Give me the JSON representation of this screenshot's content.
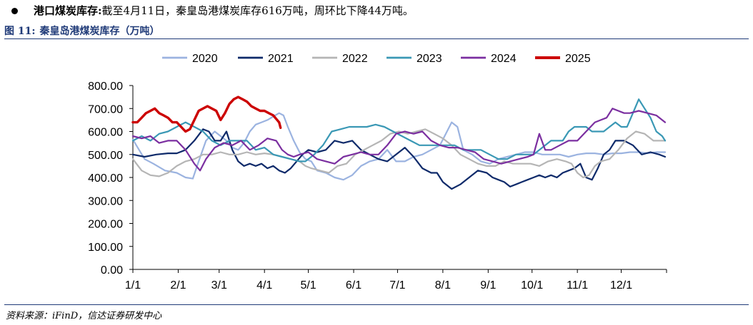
{
  "header": {
    "bullet_head": "港口煤炭库存:",
    "bullet_text": "截至4月11日，秦皇岛港煤炭库存616万吨，周环比下降44万吨。"
  },
  "figure": {
    "number": "图 11:",
    "title": "秦皇岛港煤炭库存（万吨）",
    "source": "资料来源：iFinD，信达证券研发中心"
  },
  "chart_data": {
    "type": "line",
    "title": "秦皇岛港煤炭库存（万吨）",
    "xlabel": "",
    "ylabel": "",
    "ylim": [
      0,
      800
    ],
    "yticks": [
      "800.00",
      "700.00",
      "600.00",
      "500.00",
      "400.00",
      "300.00",
      "200.00",
      "100.00",
      "0.00"
    ],
    "ytick_values": [
      800,
      700,
      600,
      500,
      400,
      300,
      200,
      100,
      0
    ],
    "xticks": [
      "1/1",
      "2/1",
      "3/1",
      "4/1",
      "5/1",
      "6/1",
      "7/1",
      "8/1",
      "9/1",
      "10/1",
      "11/1",
      "12/1"
    ],
    "xtick_days": [
      0,
      31,
      59,
      90,
      120,
      151,
      181,
      212,
      243,
      273,
      304,
      334
    ],
    "x_unit": "day of year",
    "legend_position": "top",
    "series": [
      {
        "name": "2020",
        "color": "#9bb3e0",
        "width": 2.2,
        "x": [
          0,
          8,
          14,
          22,
          30,
          36,
          41,
          45,
          50,
          56,
          60,
          64,
          68,
          72,
          76,
          80,
          84,
          88,
          92,
          96,
          100,
          103,
          106,
          110,
          114,
          118,
          122,
          126,
          132,
          138,
          144,
          150,
          156,
          162,
          168,
          174,
          180,
          186,
          192,
          198,
          204,
          210,
          214,
          218,
          222,
          226,
          232,
          238,
          244,
          250,
          256,
          262,
          268,
          274,
          280,
          286,
          292,
          298,
          304,
          310,
          316,
          322,
          328,
          334,
          340,
          346,
          352,
          358,
          364
        ],
        "y": [
          565,
          480,
          460,
          430,
          420,
          400,
          395,
          470,
          560,
          600,
          580,
          560,
          530,
          520,
          550,
          600,
          630,
          640,
          650,
          665,
          680,
          670,
          620,
          560,
          510,
          480,
          470,
          430,
          420,
          400,
          390,
          410,
          450,
          470,
          480,
          520,
          470,
          470,
          490,
          500,
          520,
          540,
          590,
          640,
          620,
          520,
          500,
          470,
          460,
          480,
          490,
          500,
          510,
          510,
          500,
          500,
          500,
          490,
          500,
          505,
          505,
          500,
          505,
          505,
          510,
          510,
          505,
          510,
          510
        ]
      },
      {
        "name": "2021",
        "color": "#0e2a6a",
        "width": 2.2,
        "x": [
          0,
          8,
          16,
          24,
          30,
          36,
          42,
          48,
          52,
          56,
          60,
          64,
          68,
          72,
          76,
          80,
          84,
          88,
          92,
          96,
          100,
          104,
          108,
          112,
          116,
          120,
          126,
          132,
          138,
          144,
          150,
          156,
          162,
          168,
          174,
          180,
          186,
          192,
          198,
          204,
          208,
          212,
          218,
          224,
          230,
          236,
          242,
          246,
          250,
          254,
          258,
          262,
          266,
          270,
          274,
          278,
          282,
          286,
          290,
          294,
          298,
          302,
          306,
          310,
          314,
          318,
          322,
          326,
          330,
          336,
          342,
          348,
          354,
          360,
          364
        ],
        "y": [
          500,
          490,
          500,
          505,
          505,
          520,
          560,
          610,
          600,
          560,
          560,
          600,
          520,
          470,
          450,
          460,
          450,
          460,
          440,
          450,
          430,
          420,
          440,
          470,
          500,
          520,
          510,
          520,
          560,
          550,
          560,
          520,
          500,
          480,
          470,
          500,
          530,
          490,
          440,
          420,
          420,
          380,
          350,
          370,
          400,
          430,
          420,
          400,
          390,
          380,
          360,
          370,
          380,
          390,
          400,
          410,
          400,
          410,
          400,
          420,
          430,
          440,
          460,
          400,
          390,
          440,
          500,
          520,
          560,
          560,
          540,
          500,
          510,
          500,
          490
        ]
      },
      {
        "name": "2022",
        "color": "#b5b5b5",
        "width": 2.2,
        "x": [
          0,
          6,
          12,
          18,
          24,
          30,
          36,
          42,
          48,
          54,
          60,
          66,
          72,
          78,
          84,
          90,
          96,
          102,
          108,
          114,
          118,
          122,
          128,
          134,
          140,
          146,
          152,
          158,
          164,
          170,
          176,
          182,
          188,
          194,
          200,
          206,
          212,
          218,
          224,
          230,
          236,
          242,
          248,
          254,
          260,
          266,
          272,
          278,
          284,
          290,
          296,
          300,
          304,
          308,
          312,
          316,
          320,
          326,
          332,
          338,
          344,
          350,
          356,
          364
        ],
        "y": [
          480,
          430,
          410,
          405,
          420,
          450,
          470,
          480,
          500,
          500,
          510,
          500,
          500,
          510,
          500,
          505,
          500,
          490,
          480,
          470,
          450,
          440,
          430,
          420,
          450,
          460,
          500,
          520,
          540,
          560,
          590,
          600,
          590,
          600,
          610,
          590,
          570,
          540,
          500,
          480,
          460,
          450,
          450,
          470,
          460,
          460,
          460,
          450,
          470,
          480,
          470,
          460,
          420,
          400,
          410,
          450,
          470,
          480,
          520,
          570,
          600,
          590,
          560,
          560
        ]
      },
      {
        "name": "2023",
        "color": "#3a98b5",
        "width": 2.2,
        "x": [
          0,
          6,
          12,
          18,
          24,
          30,
          36,
          42,
          48,
          54,
          60,
          66,
          72,
          78,
          84,
          90,
          96,
          102,
          108,
          114,
          118,
          124,
          130,
          136,
          142,
          148,
          154,
          160,
          166,
          172,
          178,
          184,
          190,
          196,
          202,
          208,
          214,
          220,
          226,
          232,
          238,
          244,
          250,
          256,
          262,
          268,
          274,
          280,
          286,
          290,
          294,
          298,
          302,
          306,
          310,
          314,
          318,
          322,
          326,
          330,
          334,
          338,
          342,
          346,
          350,
          354,
          358,
          362,
          364
        ],
        "y": [
          560,
          580,
          560,
          590,
          600,
          620,
          640,
          620,
          600,
          560,
          540,
          560,
          560,
          560,
          520,
          530,
          500,
          490,
          480,
          470,
          470,
          500,
          540,
          600,
          610,
          620,
          620,
          620,
          630,
          620,
          600,
          580,
          560,
          540,
          540,
          540,
          540,
          540,
          520,
          520,
          520,
          500,
          480,
          480,
          500,
          500,
          500,
          530,
          560,
          560,
          560,
          600,
          620,
          620,
          620,
          600,
          600,
          600,
          620,
          640,
          620,
          620,
          680,
          740,
          700,
          660,
          600,
          580,
          560
        ]
      },
      {
        "name": "2024",
        "color": "#7b2fa0",
        "width": 2.2,
        "x": [
          0,
          6,
          12,
          18,
          24,
          30,
          36,
          42,
          46,
          50,
          56,
          62,
          68,
          74,
          80,
          86,
          92,
          98,
          102,
          106,
          110,
          114,
          120,
          126,
          132,
          138,
          144,
          150,
          156,
          162,
          168,
          174,
          180,
          186,
          192,
          198,
          204,
          210,
          216,
          222,
          228,
          234,
          240,
          246,
          252,
          258,
          264,
          270,
          274,
          278,
          282,
          286,
          292,
          298,
          304,
          310,
          316,
          320,
          324,
          328,
          332,
          336,
          340,
          346,
          352,
          358,
          364
        ],
        "y": [
          580,
          570,
          580,
          550,
          560,
          560,
          520,
          460,
          430,
          480,
          530,
          550,
          540,
          560,
          520,
          540,
          570,
          560,
          520,
          500,
          490,
          500,
          510,
          480,
          470,
          460,
          490,
          500,
          510,
          500,
          500,
          540,
          590,
          600,
          590,
          600,
          560,
          540,
          530,
          530,
          520,
          510,
          480,
          470,
          460,
          470,
          480,
          490,
          500,
          590,
          520,
          520,
          540,
          560,
          560,
          600,
          640,
          650,
          660,
          700,
          690,
          680,
          680,
          690,
          680,
          670,
          640
        ]
      },
      {
        "name": "2025",
        "color": "#cc0000",
        "width": 3.4,
        "x": [
          0,
          3,
          6,
          9,
          12,
          15,
          18,
          21,
          24,
          27,
          30,
          33,
          36,
          39,
          42,
          45,
          48,
          51,
          54,
          57,
          60,
          63,
          66,
          69,
          72,
          75,
          78,
          81,
          84,
          87,
          90,
          93,
          96,
          98,
          100,
          101
        ],
        "y": [
          640,
          640,
          660,
          680,
          690,
          700,
          680,
          670,
          660,
          640,
          640,
          620,
          600,
          610,
          650,
          690,
          700,
          710,
          700,
          690,
          650,
          680,
          720,
          740,
          750,
          740,
          730,
          710,
          700,
          690,
          690,
          680,
          670,
          655,
          640,
          616
        ]
      }
    ]
  }
}
